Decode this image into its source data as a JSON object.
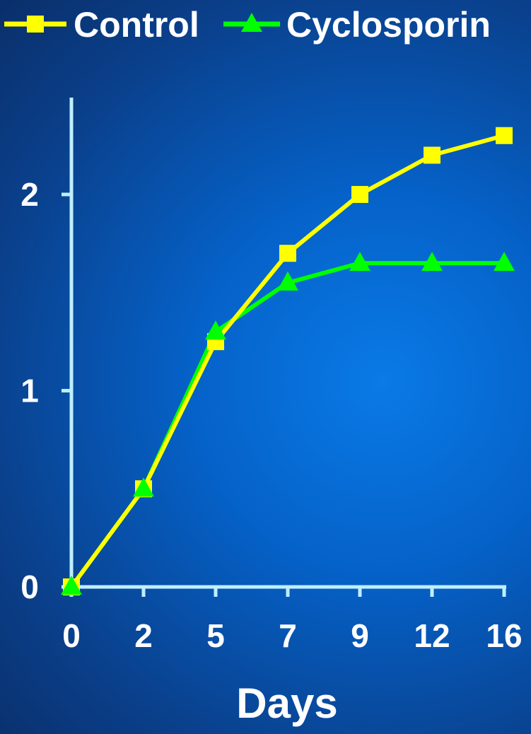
{
  "chart_data": {
    "type": "line",
    "categories": [
      "0",
      "2",
      "5",
      "7",
      "9",
      "12",
      "16"
    ],
    "y_ticks": [
      "0",
      "1",
      "2"
    ],
    "ylim": [
      0,
      2.5
    ],
    "xlabel": "Days",
    "ylabel": "",
    "grid": false,
    "legend_position": "top",
    "series": [
      {
        "name": "Control",
        "color": "#ffff00",
        "marker": "square",
        "values": [
          0,
          0.5,
          1.25,
          1.7,
          2.0,
          2.2,
          2.3
        ]
      },
      {
        "name": "Cyclosporin",
        "color": "#00ff00",
        "marker": "triangle",
        "values": [
          0,
          0.5,
          1.3,
          1.55,
          1.65,
          1.65,
          1.65
        ]
      }
    ],
    "axis_color": "#bfefff"
  }
}
